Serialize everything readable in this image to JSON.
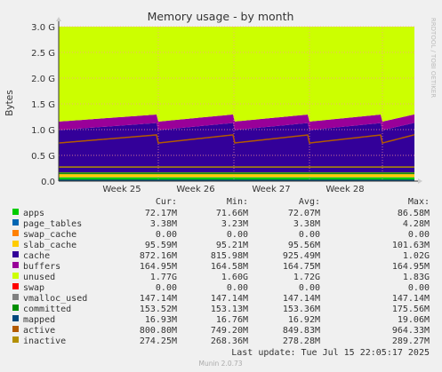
{
  "chart_data": {
    "type": "area",
    "title": "Memory usage - by month",
    "ylabel": "Bytes",
    "ylim": [
      0,
      3000000000
    ],
    "yticks": [
      {
        "value": 0,
        "label": "0.0"
      },
      {
        "value": 500000000,
        "label": "0.5 G"
      },
      {
        "value": 1000000000,
        "label": "1.0 G"
      },
      {
        "value": 1500000000,
        "label": "1.5 G"
      },
      {
        "value": 2000000000,
        "label": "2.0 G"
      },
      {
        "value": 2500000000,
        "label": "2.5 G"
      },
      {
        "value": 3000000000,
        "label": "3.0 G"
      }
    ],
    "x_labels": [
      "Week 25",
      "Week 26",
      "Week 27",
      "Week 28"
    ],
    "grid": true,
    "side_label": "RRDTOOL / TOBI OETIKER",
    "legend_headers": [
      "Cur:",
      "Min:",
      "Avg:",
      "Max:"
    ],
    "series": [
      {
        "name": "apps",
        "color": "#00cc00",
        "stacked": true,
        "cur": "72.17M",
        "min": "71.66M",
        "avg": "72.07M",
        "max": "86.58M",
        "value_gb": 0.072
      },
      {
        "name": "page_tables",
        "color": "#0066b3",
        "stacked": true,
        "cur": "3.38M",
        "min": "3.23M",
        "avg": "3.38M",
        "max": "4.28M",
        "value_gb": 0.0034
      },
      {
        "name": "swap_cache",
        "color": "#ff8000",
        "stacked": true,
        "cur": "0.00",
        "min": "0.00",
        "avg": "0.00",
        "max": "0.00",
        "value_gb": 0
      },
      {
        "name": "slab_cache",
        "color": "#ffcc00",
        "stacked": true,
        "cur": "95.59M",
        "min": "95.21M",
        "avg": "95.56M",
        "max": "101.63M",
        "value_gb": 0.0956
      },
      {
        "name": "cache",
        "color": "#330099",
        "stacked": true,
        "cur": "872.16M",
        "min": "815.98M",
        "avg": "925.49M",
        "max": "1.02G",
        "value_gb": 0.925
      },
      {
        "name": "buffers",
        "color": "#990099",
        "stacked": true,
        "cur": "164.95M",
        "min": "164.58M",
        "avg": "164.75M",
        "max": "164.95M",
        "value_gb": 0.165
      },
      {
        "name": "unused",
        "color": "#ccff00",
        "stacked": true,
        "cur": "1.77G",
        "min": "1.60G",
        "avg": "1.72G",
        "max": "1.83G",
        "value_gb": 1.72
      },
      {
        "name": "swap",
        "color": "#ff0000",
        "stacked": true,
        "cur": "0.00",
        "min": "0.00",
        "avg": "0.00",
        "max": "0.00",
        "value_gb": 0
      },
      {
        "name": "vmalloc_used",
        "color": "#808080",
        "stacked": false,
        "cur": "147.14M",
        "min": "147.14M",
        "avg": "147.14M",
        "max": "147.14M",
        "value_gb": 0.147
      },
      {
        "name": "committed",
        "color": "#008f00",
        "stacked": false,
        "cur": "153.52M",
        "min": "153.13M",
        "avg": "153.36M",
        "max": "175.56M",
        "value_gb": 0.153
      },
      {
        "name": "mapped",
        "color": "#00487d",
        "stacked": false,
        "cur": "16.93M",
        "min": "16.76M",
        "avg": "16.92M",
        "max": "19.06M",
        "value_gb": 0.017
      },
      {
        "name": "active",
        "color": "#b35a00",
        "stacked": false,
        "cur": "800.80M",
        "min": "749.20M",
        "avg": "849.83M",
        "max": "964.33M",
        "value_gb": 0.8
      },
      {
        "name": "inactive",
        "color": "#b38f00",
        "stacked": false,
        "cur": "274.25M",
        "min": "268.36M",
        "avg": "278.28M",
        "max": "289.27M",
        "value_gb": 0.274
      }
    ],
    "last_update": "Last update: Tue Jul 15 22:05:17 2025",
    "footer": "Munin 2.0.73"
  }
}
